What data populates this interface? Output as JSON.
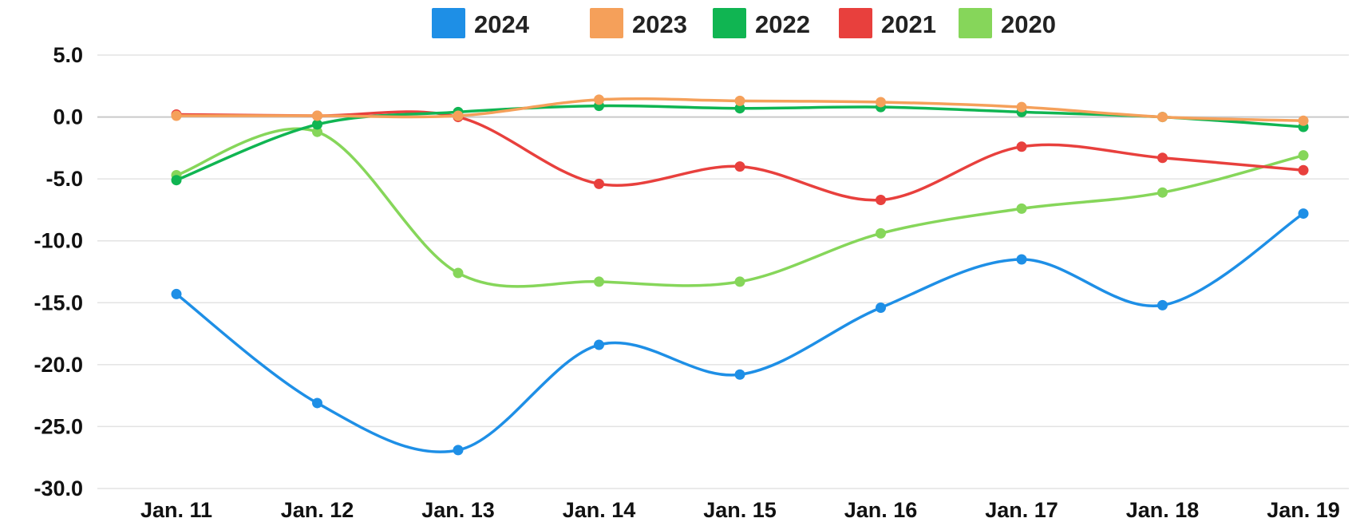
{
  "chart_data": {
    "type": "line",
    "title": "",
    "xlabel": "",
    "ylabel": "",
    "categories": [
      "Jan. 11",
      "Jan. 12",
      "Jan. 13",
      "Jan. 14",
      "Jan. 15",
      "Jan. 16",
      "Jan. 17",
      "Jan. 18",
      "Jan. 19"
    ],
    "ylim": [
      -30,
      5
    ],
    "yticks": [
      5,
      0,
      -5,
      -10,
      -15,
      -20,
      -25,
      -30
    ],
    "ytick_labels": [
      "5.0",
      "0.0",
      "-5.0",
      "-10.0",
      "-15.0",
      "-20.0",
      "-25.0",
      "-30.0"
    ],
    "grid": "horizontal",
    "smooth": true,
    "legend_position": "top-center",
    "series": [
      {
        "name": "2024",
        "color": "#1e8fe6",
        "values": [
          -14.3,
          -23.1,
          -26.9,
          -18.4,
          -20.8,
          -15.4,
          -11.5,
          -15.2,
          -7.8
        ]
      },
      {
        "name": "2023",
        "color": "#f5a05a",
        "values": [
          0.1,
          0.1,
          0.1,
          1.4,
          1.3,
          1.2,
          0.8,
          0.0,
          -0.3
        ]
      },
      {
        "name": "2022",
        "color": "#10b552",
        "values": [
          -5.1,
          -0.6,
          0.4,
          0.9,
          0.7,
          0.8,
          0.4,
          0.0,
          -0.8
        ]
      },
      {
        "name": "2021",
        "color": "#e8403d",
        "values": [
          0.2,
          0.1,
          0.0,
          -5.4,
          -4.0,
          -6.7,
          -2.4,
          -3.3,
          -4.3
        ]
      },
      {
        "name": "2020",
        "color": "#86d65a",
        "values": [
          -4.7,
          -1.2,
          -12.6,
          -13.3,
          -13.3,
          -9.4,
          -7.4,
          -6.1,
          -3.1
        ]
      }
    ]
  }
}
